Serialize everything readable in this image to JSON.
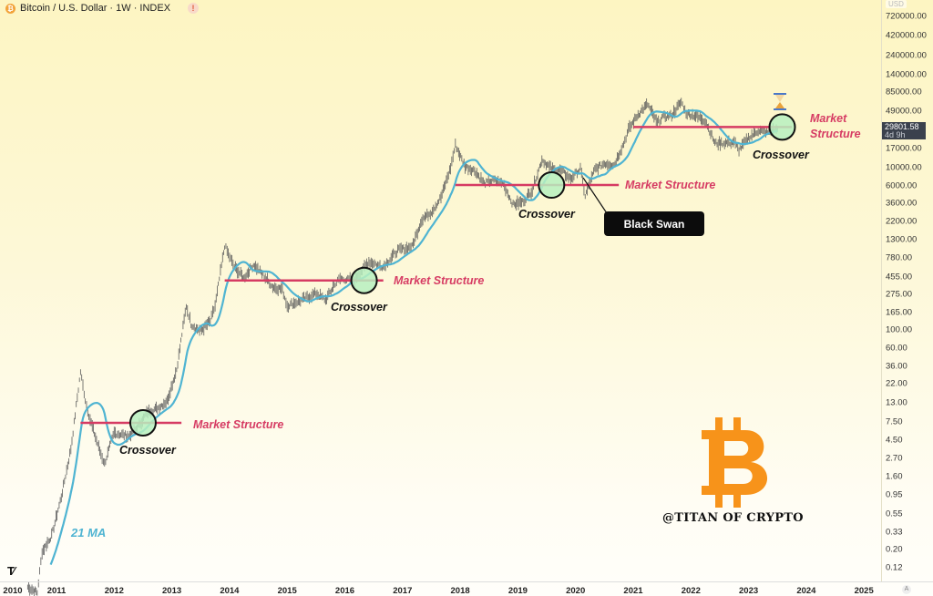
{
  "header": {
    "coin_icon": "bitcoin-icon",
    "title": "Bitcoin / U.S. Dollar · 1W · INDEX",
    "alert_icon": "!"
  },
  "price_axis": {
    "currency": "USD",
    "current_price": "29801.58",
    "countdown": "4d 9h"
  },
  "chart_data": {
    "type": "bar",
    "subtype": "weekly price bars (OHLC style) with moving average",
    "y_scale": "log",
    "ylim": [
      0.12,
      720000
    ],
    "y_ticks": [
      "720000.00",
      "420000.00",
      "240000.00",
      "140000.00",
      "85000.00",
      "49000.00",
      "17000.00",
      "10000.00",
      "6000.00",
      "3600.00",
      "2200.00",
      "1300.00",
      "780.00",
      "455.00",
      "275.00",
      "165.00",
      "100.00",
      "60.00",
      "36.00",
      "22.00",
      "13.00",
      "7.50",
      "4.50",
      "2.70",
      "1.60",
      "0.95",
      "0.55",
      "0.33",
      "0.20",
      "0.12"
    ],
    "x_ticks": [
      "2010",
      "2011",
      "2012",
      "2013",
      "2014",
      "2015",
      "2016",
      "2017",
      "2018",
      "2019",
      "2020",
      "2021",
      "2022",
      "2023",
      "2024",
      "2025"
    ],
    "grid": false,
    "price_series": [
      [
        "2010-07",
        0.07
      ],
      [
        "2010-09",
        0.06
      ],
      [
        "2010-10",
        0.19
      ],
      [
        "2010-12",
        0.3
      ],
      [
        "2011-02",
        0.9
      ],
      [
        "2011-04",
        3.5
      ],
      [
        "2011-06",
        31
      ],
      [
        "2011-07",
        14
      ],
      [
        "2011-08",
        8
      ],
      [
        "2011-10",
        3.3
      ],
      [
        "2011-11",
        2.3
      ],
      [
        "2012-01",
        5.5
      ],
      [
        "2012-04",
        5
      ],
      [
        "2012-06",
        6.6
      ],
      [
        "2012-08",
        10
      ],
      [
        "2012-10",
        11
      ],
      [
        "2012-12",
        13.5
      ],
      [
        "2013-02",
        33
      ],
      [
        "2013-04",
        200
      ],
      [
        "2013-05",
        120
      ],
      [
        "2013-07",
        97
      ],
      [
        "2013-09",
        130
      ],
      [
        "2013-10",
        200
      ],
      [
        "2013-12",
        1100
      ],
      [
        "2014-01",
        800
      ],
      [
        "2014-02",
        600
      ],
      [
        "2014-04",
        440
      ],
      [
        "2014-06",
        640
      ],
      [
        "2014-08",
        480
      ],
      [
        "2014-10",
        340
      ],
      [
        "2014-12",
        320
      ],
      [
        "2015-01",
        200
      ],
      [
        "2015-04",
        236
      ],
      [
        "2015-07",
        285
      ],
      [
        "2015-09",
        236
      ],
      [
        "2015-11",
        378
      ],
      [
        "2015-12",
        430
      ],
      [
        "2016-03",
        416
      ],
      [
        "2016-06",
        700
      ],
      [
        "2016-09",
        608
      ],
      [
        "2016-12",
        960
      ],
      [
        "2017-03",
        1070
      ],
      [
        "2017-05",
        2300
      ],
      [
        "2017-07",
        2850
      ],
      [
        "2017-09",
        4300
      ],
      [
        "2017-11",
        10000
      ],
      [
        "2017-12",
        19000
      ],
      [
        "2018-02",
        10300
      ],
      [
        "2018-04",
        9200
      ],
      [
        "2018-06",
        6400
      ],
      [
        "2018-08",
        7000
      ],
      [
        "2018-10",
        6300
      ],
      [
        "2018-12",
        3500
      ],
      [
        "2019-02",
        3800
      ],
      [
        "2019-04",
        5300
      ],
      [
        "2019-06",
        12500
      ],
      [
        "2019-08",
        9600
      ],
      [
        "2019-10",
        9200
      ],
      [
        "2019-12",
        7200
      ],
      [
        "2020-02",
        9800
      ],
      [
        "2020-03",
        4500
      ],
      [
        "2020-05",
        9450
      ],
      [
        "2020-07",
        11300
      ],
      [
        "2020-09",
        10800
      ],
      [
        "2020-11",
        19700
      ],
      [
        "2020-12",
        29000
      ],
      [
        "2021-02",
        45000
      ],
      [
        "2021-04",
        60000
      ],
      [
        "2021-06",
        35000
      ],
      [
        "2021-07",
        41500
      ],
      [
        "2021-09",
        43800
      ],
      [
        "2021-11",
        64000
      ],
      [
        "2021-12",
        46300
      ],
      [
        "2022-02",
        43200
      ],
      [
        "2022-04",
        37700
      ],
      [
        "2022-06",
        19900
      ],
      [
        "2022-08",
        20000
      ],
      [
        "2022-10",
        20500
      ],
      [
        "2022-11",
        16500
      ],
      [
        "2023-01",
        23100
      ],
      [
        "2023-03",
        28500
      ],
      [
        "2023-05",
        27200
      ],
      [
        "2023-07",
        29800
      ]
    ],
    "moving_average": {
      "label": "21 MA",
      "period_weeks": 21,
      "color": "#4fb4d2"
    },
    "market_structure": [
      {
        "label": "Market Structure",
        "level": 7.3,
        "from": "2011-06",
        "to": "2013-03"
      },
      {
        "label": "Market Structure",
        "level": 410,
        "from": "2013-12",
        "to": "2016-09"
      },
      {
        "label": "Market Structure",
        "level": 6100,
        "from": "2017-12",
        "to": "2020-10"
      },
      {
        "label_line1": "Market",
        "label_line2": "Structure",
        "level": 31500,
        "from": "2021-01",
        "to": "2023-10"
      }
    ],
    "crossovers": [
      {
        "label": "Crossover",
        "date": "2012-07",
        "price": 7.3
      },
      {
        "label": "Crossover",
        "date": "2016-05",
        "price": 410
      },
      {
        "label": "Crossover",
        "date": "2019-08",
        "price": 6100
      },
      {
        "label": "Crossover",
        "date": "2023-08",
        "price": 31500
      }
    ],
    "black_swan": {
      "label": "Black Swan",
      "date": "2020-03"
    },
    "colors": {
      "structure": "#d63b63",
      "crossover_fill": "#b7f0c0",
      "ma": "#4fb4d2",
      "bars": "#555555",
      "logo": "#f7931a"
    }
  },
  "watermark": {
    "logo": "bitcoin-logo",
    "handle": "@TITAN OF CRYPTO"
  },
  "branding": {
    "logo": "TV"
  }
}
